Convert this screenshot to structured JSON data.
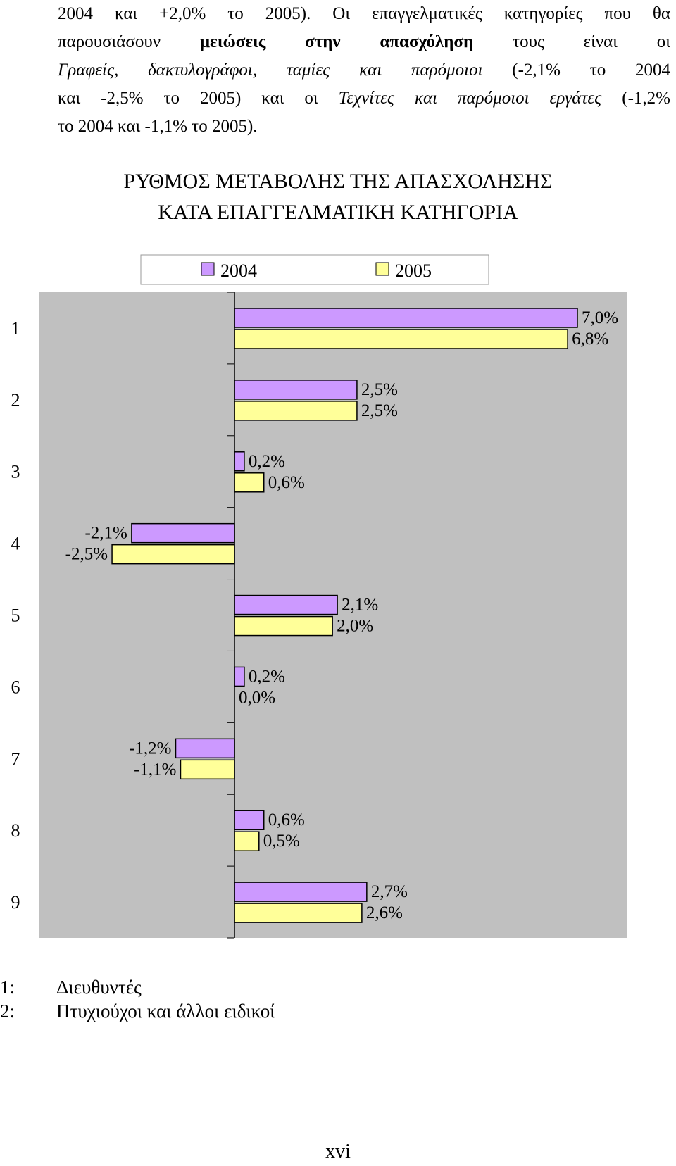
{
  "paragraph": {
    "line1": "2004 και +2,0% το 2005). Οι επαγγελματικές κατηγορίες που θα",
    "line2_a": "παρουσιάσουν",
    "line2_b": "μειώσεις στην απασχόληση",
    "line2_c": "τους είναι οι",
    "line3_a": "Γραφείς, δακτυλογράφοι, ταμίες και παρόμοιοι",
    "line3_b": "(-2,1% το 2004",
    "line4_a": "και -2,5% το 2005) και οι",
    "line4_b": "Τεχνίτες και παρόμοιοι εργάτες",
    "line4_c": "(-1,2%",
    "line5": "το 2004 και -1,1% το 2005)."
  },
  "chart_title_line1": "ΡΥΘΜΟΣ ΜΕΤΑΒΟΛΗΣ ΤΗΣ ΑΠΑΣΧΟΛΗΣΗΣ",
  "chart_title_line2": "ΚΑΤΑ ΕΠΑΓΓΕΛΜΑΤΙΚΗ ΚΑΤΗΓΟΡΙΑ",
  "chart_data": {
    "type": "bar",
    "orientation": "horizontal",
    "categories": [
      "1",
      "2",
      "3",
      "4",
      "5",
      "6",
      "7",
      "8",
      "9"
    ],
    "series": [
      {
        "name": "2004",
        "color": "#cc99ff",
        "values": [
          7.0,
          2.5,
          0.2,
          -2.1,
          2.1,
          0.2,
          -1.2,
          0.6,
          2.7
        ],
        "labels": [
          "7,0%",
          "2,5%",
          "0,2%",
          "-2,1%",
          "2,1%",
          "0,2%",
          "-1,2%",
          "0,6%",
          "2,7%"
        ]
      },
      {
        "name": "2005",
        "color": "#ffff99",
        "values": [
          6.8,
          2.5,
          0.6,
          -2.5,
          2.0,
          0.0,
          -1.1,
          0.5,
          2.6
        ],
        "labels": [
          "6,8%",
          "2,5%",
          "0,6%",
          "-2,5%",
          "2,0%",
          "0,0%",
          "-1,1%",
          "0,5%",
          "2,6%"
        ]
      }
    ],
    "xlim": [
      -4,
      8
    ],
    "plot_background": "#c0c0c0",
    "legend_position": "top",
    "grid": false
  },
  "footnotes": [
    {
      "num": "1:",
      "text": "Διευθυντές"
    },
    {
      "num": "2:",
      "text": "Πτυχιούχοι και άλλοι ειδικοί"
    }
  ],
  "page_number": "xvi"
}
